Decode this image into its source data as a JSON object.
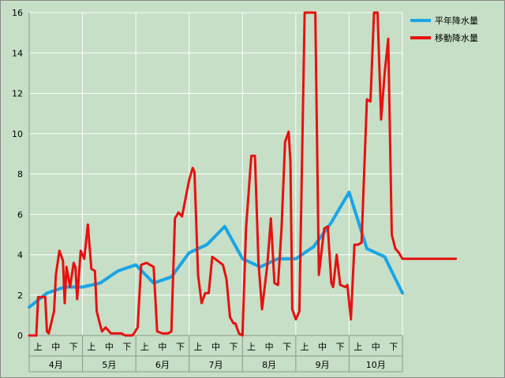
{
  "chart_data": {
    "type": "line",
    "ylim": [
      0,
      16
    ],
    "yticks": [
      0,
      2,
      4,
      6,
      8,
      10,
      12,
      14,
      16
    ],
    "grid": true,
    "legend_position": "top-right",
    "x_period_labels": [
      "上",
      "中",
      "下"
    ],
    "x_month_labels": [
      "4月",
      "5月",
      "6月",
      "7月",
      "8月",
      "9月",
      "10月"
    ],
    "series": [
      {
        "name": "平年降水量",
        "color": "#1aa5e6",
        "x": [
          0,
          1,
          2,
          3,
          4,
          5,
          6,
          7,
          8,
          9,
          10,
          11,
          12,
          13,
          14,
          15,
          16,
          17,
          18,
          19,
          20,
          21
        ],
        "y": [
          1.4,
          2.1,
          2.4,
          2.4,
          2.6,
          3.2,
          3.5,
          2.6,
          2.9,
          4.1,
          4.5,
          5.4,
          3.8,
          3.4,
          3.8,
          3.8,
          4.4,
          5.6,
          7.1,
          4.3,
          3.9,
          2.1
        ]
      },
      {
        "name": "移動降水量",
        "color": "#e81010",
        "x": [
          0,
          0.4,
          0.5,
          0.9,
          1.0,
          1.1,
          1.4,
          1.5,
          1.7,
          1.9,
          2.0,
          2.1,
          2.3,
          2.5,
          2.6,
          2.7,
          2.9,
          3.1,
          3.3,
          3.5,
          3.7,
          3.8,
          4.0,
          4.1,
          4.3,
          4.6,
          4.8,
          5.0,
          5.2,
          5.4,
          5.5,
          5.6,
          5.8,
          5.9,
          6.1,
          6.3,
          6.6,
          7.0,
          7.2,
          7.5,
          7.8,
          8.0,
          8.2,
          8.4,
          8.6,
          9.0,
          9.2,
          9.3,
          9.5,
          9.7,
          9.9,
          10.1,
          10.3,
          10.6,
          10.9,
          11.1,
          11.3,
          11.5,
          11.6,
          11.8,
          12.0,
          12.2,
          12.5,
          12.7,
          12.9,
          13.1,
          13.4,
          13.6,
          13.8,
          14.0,
          14.2,
          14.4,
          14.6,
          14.7,
          14.8,
          15.0,
          15.2,
          15.5,
          15.7,
          15.9,
          16.1,
          16.3,
          16.6,
          16.8,
          17.0,
          17.1,
          17.3,
          17.5,
          17.8,
          17.9,
          18.1,
          18.3,
          18.5,
          18.7,
          19.0,
          19.2,
          19.4,
          19.6,
          19.8,
          20.0,
          20.2,
          20.4,
          20.6,
          20.8,
          21.0,
          21.2,
          21.4,
          21.6,
          21.8,
          22.0,
          22.2,
          22.4,
          22.6,
          22.8,
          23.0,
          23.1,
          23.3,
          23.5,
          23.7,
          23.9,
          24.0
        ],
        "y": [
          0,
          0,
          1.9,
          1.9,
          0.2,
          0.1,
          1.2,
          3.0,
          4.2,
          3.7,
          1.6,
          3.4,
          2.4,
          3.6,
          3.4,
          1.8,
          4.2,
          3.8,
          5.5,
          3.3,
          3.2,
          1.2,
          0.5,
          0.2,
          0.4,
          0.1,
          0.1,
          0.1,
          0.1,
          0,
          0,
          0,
          0,
          0.1,
          0.4,
          3.5,
          3.6,
          3.4,
          0.2,
          0.1,
          0.1,
          0.2,
          5.8,
          6.1,
          5.9,
          7.7,
          8.3,
          8.1,
          3.0,
          1.6,
          2.1,
          2.1,
          3.9,
          3.7,
          3.5,
          2.8,
          0.9,
          0.6,
          0.6,
          0.1,
          0,
          5.3,
          8.9,
          8.9,
          3.6,
          1.3,
          3.5,
          5.8,
          2.6,
          2.5,
          5.3,
          9.6,
          10.1,
          8.6,
          1.3,
          0.8,
          1.2,
          16.0,
          16.0,
          16.0,
          16.0,
          3.0,
          5.3,
          5.4,
          2.6,
          2.4,
          4.0,
          2.5,
          2.4,
          2.5,
          0.8,
          4.5,
          4.5,
          4.6,
          11.7,
          11.6,
          16.0,
          16.0,
          10.7,
          13.0,
          14.7,
          5.0,
          4.3,
          4.1,
          3.8,
          3.8,
          3.8,
          3.8,
          3.8,
          3.8,
          3.8,
          3.8,
          3.8,
          3.8,
          3.8,
          3.8,
          3.8,
          3.8,
          3.8,
          3.8,
          3.8
        ]
      }
    ]
  }
}
